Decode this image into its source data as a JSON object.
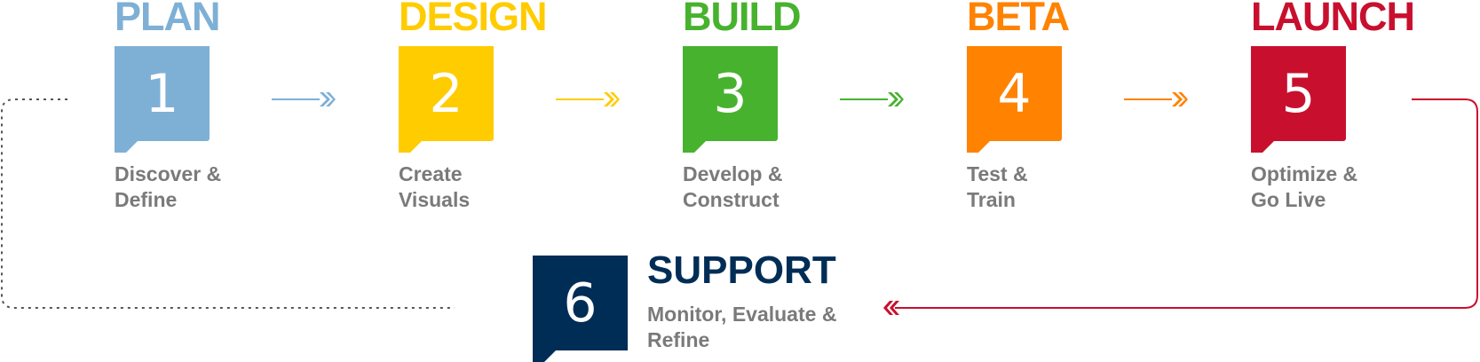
{
  "colors": {
    "plan": "#7eb0d6",
    "design": "#ffcc00",
    "build": "#47b22e",
    "beta": "#ff8200",
    "launch": "#c8102e",
    "support": "#002d56",
    "desc_text": "#7a7a7a",
    "loop_dotted": "#555555"
  },
  "steps": [
    {
      "title": "PLAN",
      "number": "1",
      "description": "Discover &\nDefine",
      "color_key": "plan"
    },
    {
      "title": "DESIGN",
      "number": "2",
      "description": "Create\nVisuals",
      "color_key": "design"
    },
    {
      "title": "BUILD",
      "number": "3",
      "description": "Develop &\nConstruct",
      "color_key": "build"
    },
    {
      "title": "BETA",
      "number": "4",
      "description": "Test &\nTrain",
      "color_key": "beta"
    },
    {
      "title": "LAUNCH",
      "number": "5",
      "description": "Optimize &\nGo Live",
      "color_key": "launch"
    }
  ],
  "support": {
    "title": "SUPPORT",
    "number": "6",
    "description": "Monitor, Evaluate &\nRefine"
  }
}
